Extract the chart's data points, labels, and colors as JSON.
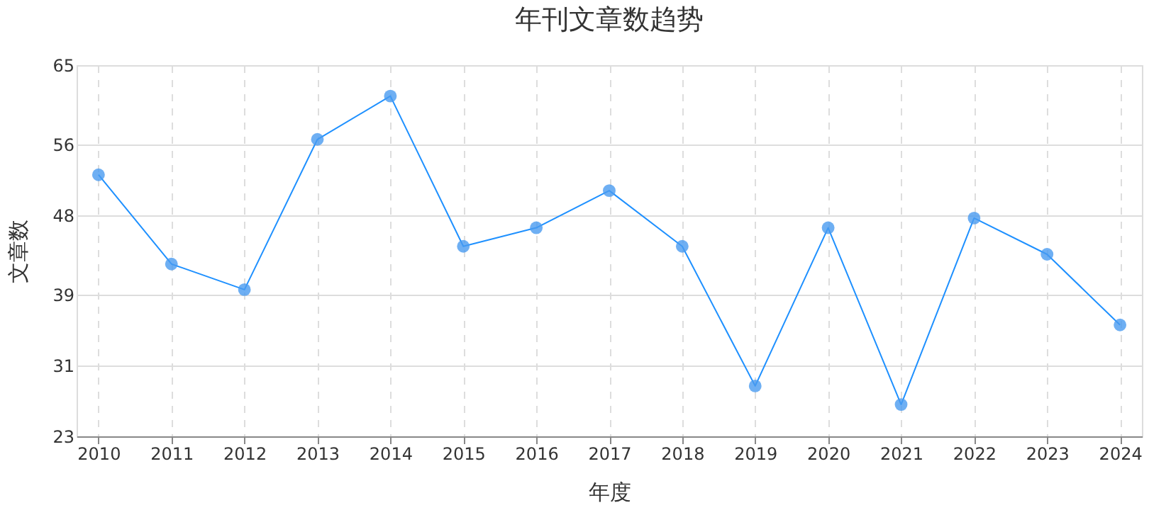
{
  "chart_data": {
    "type": "line",
    "title": "年刊文章数趋势",
    "xlabel": "年度",
    "ylabel": "文章数",
    "categories": [
      "2010",
      "2011",
      "2012",
      "2013",
      "2014",
      "2015",
      "2016",
      "2017",
      "2018",
      "2019",
      "2020",
      "2021",
      "2022",
      "2023",
      "2024"
    ],
    "series": [
      {
        "color": "#1e90ff",
        "values": [
          52.6,
          42.5,
          39.6,
          56.6,
          61.5,
          44.5,
          46.6,
          50.8,
          44.5,
          28.7,
          46.6,
          26.6,
          47.7,
          43.6,
          35.6
        ]
      }
    ],
    "ylim": [
      23,
      65
    ],
    "yticks": [
      23,
      31,
      39,
      48,
      56,
      65
    ],
    "grid": true,
    "marker": "circle",
    "line_style": "solid",
    "legend": false
  }
}
